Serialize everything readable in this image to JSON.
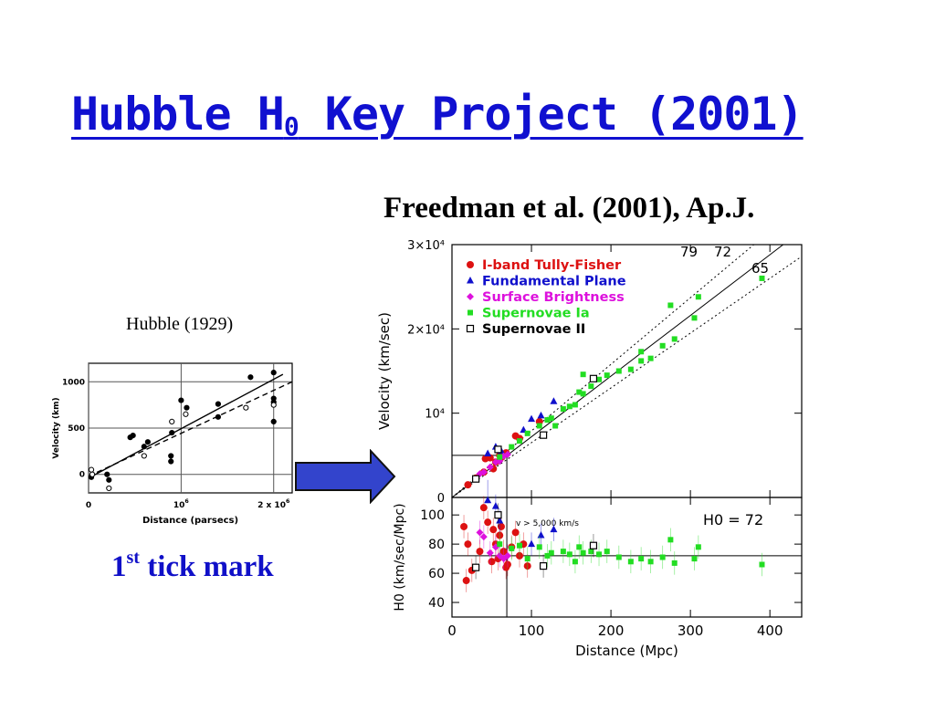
{
  "slide": {
    "title_main": "Hubble H",
    "title_sub": "0",
    "title_rest": " Key Project (2001)",
    "citation": "Freedman et al. (2001), Ap.J.",
    "hubble_label": "Hubble (1929)",
    "tick_label_num": "1",
    "tick_label_sup": "st",
    "tick_label_rest": " tick mark"
  },
  "colors": {
    "title": "#1010d0",
    "arrow": "#3344cc",
    "tully_fisher": "#dd1111",
    "fundamental_plane": "#1010cc",
    "surface_brightness": "#dd11dd",
    "supernovae_ia": "#22dd22",
    "supernovae_ii": "#000000"
  },
  "icons": {
    "arrow": "right-block-arrow-icon"
  },
  "chart_data": [
    {
      "type": "scatter",
      "title": "",
      "xlabel": "Distance (parsecs)",
      "ylabel": "Velocity (km)",
      "x_ticks": [
        "0",
        "10^6",
        "2 x 10^6"
      ],
      "y_ticks": [
        "0",
        "500",
        "1000"
      ],
      "xlim": [
        0,
        2200000
      ],
      "ylim": [
        -200,
        1200
      ],
      "series": [
        {
          "name": "",
          "marker": "filled",
          "points": [
            [
              30000,
              -30
            ],
            [
              200000,
              0
            ],
            [
              220000,
              -60
            ],
            [
              450000,
              400
            ],
            [
              480000,
              420
            ],
            [
              600000,
              300
            ],
            [
              640000,
              350
            ],
            [
              900000,
              450
            ],
            [
              890000,
              200
            ],
            [
              890000,
              140
            ],
            [
              1000000,
              800
            ],
            [
              1060000,
              720
            ],
            [
              1400000,
              760
            ],
            [
              1750000,
              1050
            ],
            [
              2000000,
              1100
            ],
            [
              2000000,
              820
            ],
            [
              2000000,
              780
            ],
            [
              2000000,
              570
            ],
            [
              1400000,
              620
            ]
          ]
        },
        {
          "name": "",
          "marker": "open",
          "points": [
            [
              30000,
              50
            ],
            [
              40000,
              0
            ],
            [
              220000,
              -150
            ],
            [
              600000,
              200
            ],
            [
              900000,
              570
            ],
            [
              1050000,
              650
            ],
            [
              1700000,
              720
            ],
            [
              2000000,
              750
            ]
          ]
        }
      ],
      "lines": [
        {
          "style": "solid",
          "from": [
            0,
            -40
          ],
          "to": [
            2100000,
            1080
          ]
        },
        {
          "style": "dashed",
          "from": [
            0,
            -20
          ],
          "to": [
            2200000,
            1000
          ]
        }
      ]
    },
    {
      "type": "scatter",
      "title": "",
      "xlabel": "Distance (Mpc)",
      "ylabel": "Velocity (km/sec)",
      "x_ticks": [
        "0",
        "100",
        "200",
        "300",
        "400"
      ],
      "y_ticks": [
        "0",
        "10⁴",
        "2×10⁴",
        "3×10⁴"
      ],
      "xlim": [
        0,
        440
      ],
      "ylim": [
        0,
        30000
      ],
      "legend_position": "top-left",
      "fit_lines": [
        {
          "label": "79",
          "slope": 79,
          "style": "dotted"
        },
        {
          "label": "72",
          "slope": 72,
          "style": "solid"
        },
        {
          "label": "65",
          "slope": 65,
          "style": "dotted"
        }
      ],
      "series": [
        {
          "name": "I-band Tully-Fisher",
          "marker": "circle",
          "points": [
            [
              20,
              1500
            ],
            [
              30,
              2300
            ],
            [
              40,
              3000
            ],
            [
              42,
              4600
            ],
            [
              48,
              4700
            ],
            [
              52,
              3400
            ],
            [
              55,
              4200
            ],
            [
              60,
              5000
            ],
            [
              63,
              4800
            ],
            [
              68,
              5300
            ],
            [
              80,
              7300
            ],
            [
              85,
              7000
            ],
            [
              110,
              9000
            ]
          ]
        },
        {
          "name": "Fundamental Plane",
          "marker": "triangle",
          "points": [
            [
              45,
              5200
            ],
            [
              55,
              6000
            ],
            [
              62,
              5500
            ],
            [
              90,
              8000
            ],
            [
              100,
              9300
            ],
            [
              112,
              9700
            ],
            [
              128,
              11400
            ]
          ]
        },
        {
          "name": "Surface Brightness",
          "marker": "diamond",
          "points": [
            [
              35,
              2800
            ],
            [
              40,
              3000
            ],
            [
              48,
              3600
            ],
            [
              55,
              4200
            ],
            [
              60,
              4300
            ],
            [
              65,
              4900
            ],
            [
              70,
              5100
            ]
          ]
        },
        {
          "name": "Supernovae Ia",
          "marker": "square",
          "points": [
            [
              60,
              4800
            ],
            [
              75,
              6000
            ],
            [
              85,
              6700
            ],
            [
              95,
              7600
            ],
            [
              110,
              8500
            ],
            [
              125,
              9400
            ],
            [
              140,
              10500
            ],
            [
              155,
              11000
            ],
            [
              165,
              12300
            ],
            [
              175,
              13200
            ],
            [
              185,
              14000
            ],
            [
              195,
              14500
            ],
            [
              210,
              15000
            ],
            [
              225,
              15200
            ],
            [
              238,
              16200
            ],
            [
              250,
              16500
            ],
            [
              265,
              18000
            ],
            [
              275,
              22800
            ],
            [
              280,
              18800
            ],
            [
              305,
              21300
            ],
            [
              310,
              23800
            ],
            [
              390,
              26000
            ],
            [
              165,
              14600
            ],
            [
              238,
              17300
            ],
            [
              130,
              8500
            ],
            [
              148,
              10800
            ],
            [
              160,
              12500
            ],
            [
              120,
              9200
            ]
          ]
        },
        {
          "name": "Supernovae II",
          "marker": "open-square",
          "points": [
            [
              30,
              2200
            ],
            [
              58,
              5700
            ],
            [
              115,
              7400
            ],
            [
              178,
              14100
            ]
          ]
        }
      ]
    },
    {
      "type": "scatter",
      "title": "",
      "xlabel": "Distance (Mpc)",
      "ylabel": "H0 (km/sec/Mpc)",
      "x_ticks": [
        "0",
        "100",
        "200",
        "300",
        "400"
      ],
      "y_ticks": [
        "40",
        "60",
        "80",
        "100"
      ],
      "xlim": [
        0,
        440
      ],
      "ylim": [
        30,
        112
      ],
      "annotations": [
        "v > 5,000 km/s",
        "H0 = 72"
      ],
      "reference_line": 72,
      "series": [
        {
          "name": "I-band Tully-Fisher",
          "marker": "circle",
          "points": [
            [
              15,
              92
            ],
            [
              18,
              55
            ],
            [
              20,
              80
            ],
            [
              25,
              62
            ],
            [
              35,
              75
            ],
            [
              40,
              105
            ],
            [
              45,
              95
            ],
            [
              50,
              68
            ],
            [
              52,
              90
            ],
            [
              55,
              80
            ],
            [
              58,
              70
            ],
            [
              60,
              86
            ],
            [
              62,
              92
            ],
            [
              65,
              75
            ],
            [
              68,
              64
            ],
            [
              70,
              66
            ],
            [
              75,
              78
            ],
            [
              80,
              88
            ],
            [
              85,
              72
            ],
            [
              90,
              80
            ],
            [
              95,
              65
            ]
          ]
        },
        {
          "name": "Fundamental Plane",
          "marker": "triangle",
          "points": [
            [
              45,
              116
            ],
            [
              55,
              106
            ],
            [
              60,
              96
            ],
            [
              100,
              80
            ],
            [
              112,
              86
            ],
            [
              128,
              90
            ]
          ]
        },
        {
          "name": "Surface Brightness",
          "marker": "diamond",
          "points": [
            [
              35,
              88
            ],
            [
              40,
              85
            ],
            [
              48,
              74
            ],
            [
              55,
              78
            ],
            [
              60,
              72
            ],
            [
              65,
              70
            ],
            [
              70,
              72
            ]
          ]
        },
        {
          "name": "Supernovae Ia",
          "marker": "square",
          "points": [
            [
              60,
              80
            ],
            [
              75,
              77
            ],
            [
              85,
              79
            ],
            [
              95,
              70
            ],
            [
              110,
              78
            ],
            [
              120,
              72
            ],
            [
              125,
              74
            ],
            [
              140,
              75
            ],
            [
              148,
              73
            ],
            [
              155,
              68
            ],
            [
              160,
              78
            ],
            [
              165,
              74
            ],
            [
              175,
              75
            ],
            [
              185,
              73
            ],
            [
              195,
              75
            ],
            [
              210,
              71
            ],
            [
              225,
              68
            ],
            [
              238,
              70
            ],
            [
              250,
              68
            ],
            [
              265,
              71
            ],
            [
              275,
              83
            ],
            [
              280,
              67
            ],
            [
              305,
              70
            ],
            [
              310,
              78
            ],
            [
              390,
              66
            ]
          ]
        },
        {
          "name": "Supernovae II",
          "marker": "open-square",
          "points": [
            [
              30,
              64
            ],
            [
              58,
              100
            ],
            [
              115,
              65
            ],
            [
              178,
              79
            ]
          ]
        }
      ]
    }
  ]
}
